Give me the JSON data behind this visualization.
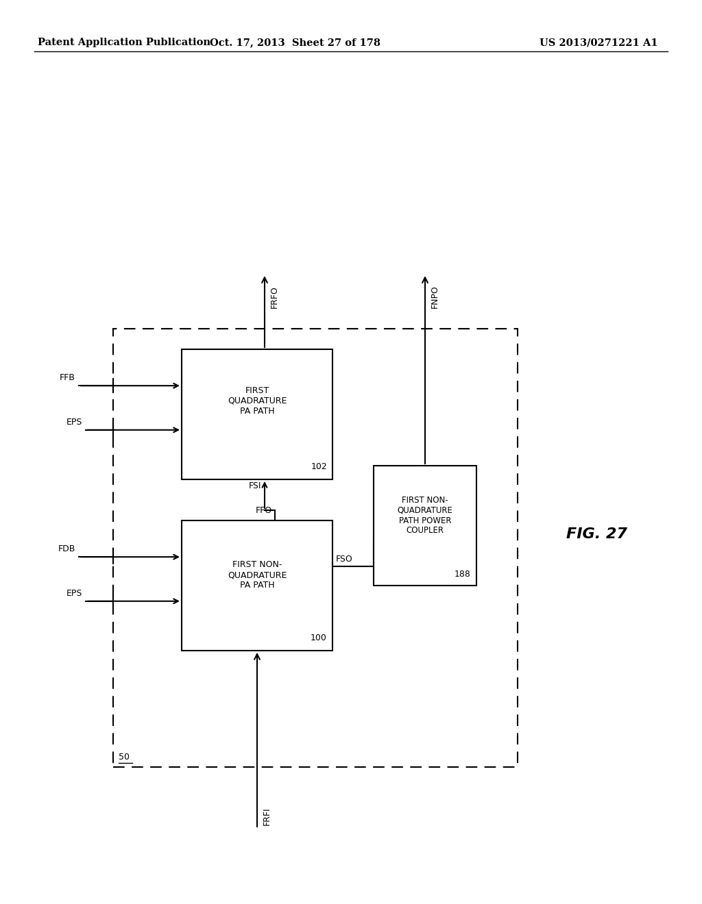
{
  "header_left": "Patent Application Publication",
  "header_mid": "Oct. 17, 2013  Sheet 27 of 178",
  "header_right": "US 2013/0271221 A1",
  "fig_label": "FIG. 27",
  "background_color": "#ffffff"
}
